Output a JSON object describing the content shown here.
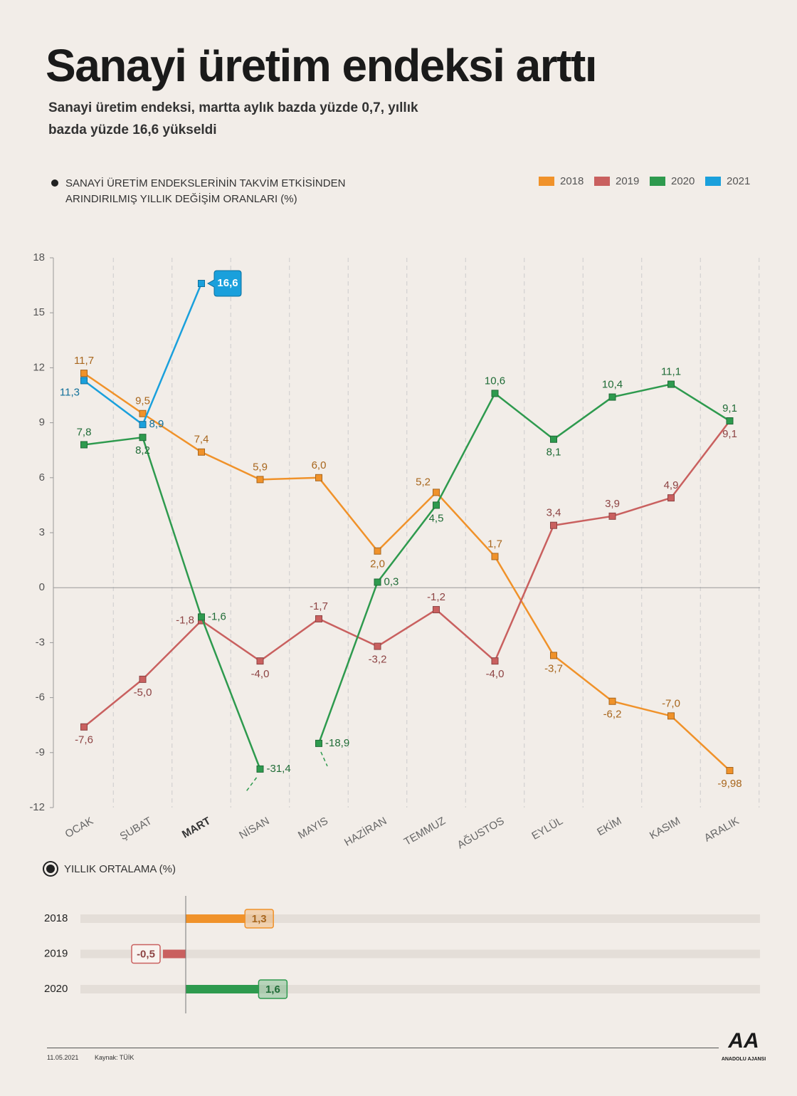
{
  "header": {
    "title": "Sanayi üretim endeksi arttı",
    "subtitle": "Sanayi üretim endeksi, martta aylık bazda yüzde 0,7, yıllık bazda yüzde 16,6 yükseldi"
  },
  "chart_data": [
    {
      "type": "line",
      "title": "SANAYİ ÜRETİM ENDEKSLERİNİN TAKVİM ETKİSİNDEN ARINDIRILMIŞ YILLIK DEĞİŞİM ORANLARI (%)",
      "categories": [
        "OCAK",
        "ŞUBAT",
        "MART",
        "NİSAN",
        "MAYIS",
        "HAZİRAN",
        "TEMMUZ",
        "AĞUSTOS",
        "EYLÜL",
        "EKİM",
        "KASIM",
        "ARALIK"
      ],
      "highlight_category": 2,
      "ylim": [
        -12,
        18
      ],
      "yticks": [
        18,
        15,
        12,
        9,
        6,
        3,
        0,
        -3,
        -6,
        -9,
        -12
      ],
      "legend": "top-right",
      "series": [
        {
          "name": "2018",
          "color": "#f0922a",
          "values": [
            11.7,
            9.5,
            7.4,
            5.9,
            6.0,
            2.0,
            5.2,
            1.7,
            -3.7,
            -6.2,
            -7.0,
            -9.98
          ],
          "value_labels": [
            "11,7",
            "9,5",
            "7,4",
            "5,9",
            "6,0",
            "2,0",
            "5,2",
            "1,7",
            "-3,7",
            "-6,2",
            "-7,0",
            "-9,98"
          ]
        },
        {
          "name": "2019",
          "color": "#c9605f",
          "values": [
            -7.6,
            -5.0,
            -1.8,
            -4.0,
            -1.7,
            -3.2,
            -1.2,
            -4.0,
            3.4,
            3.9,
            4.9,
            9.1
          ],
          "value_labels": [
            "-7,6",
            "-5,0",
            "-1,8",
            "-4,0",
            "-1,7",
            "-3,2",
            "-1,2",
            "-4,0",
            "3,4",
            "3,9",
            "4,9",
            "9,1"
          ]
        },
        {
          "name": "2020",
          "color": "#2e9a4e",
          "values": [
            7.8,
            8.2,
            -1.6,
            -31.4,
            -18.9,
            0.3,
            4.5,
            10.6,
            8.1,
            10.4,
            11.1,
            9.1
          ],
          "value_labels": [
            "7,8",
            "8,2",
            "-1,6",
            "-31,4",
            "-18,9",
            "0,3",
            "4,5",
            "10,6",
            "8,1",
            "10,4",
            "11,1",
            "9,1"
          ]
        },
        {
          "name": "2021",
          "color": "#1aa0dc",
          "values": [
            11.3,
            8.9,
            16.6,
            null,
            null,
            null,
            null,
            null,
            null,
            null,
            null,
            null
          ],
          "value_labels": [
            "11,3",
            "8,9",
            "16,6",
            null,
            null,
            null,
            null,
            null,
            null,
            null,
            null,
            null
          ]
        }
      ]
    },
    {
      "type": "hbar",
      "title": "YILLIK ORTALAMA (%)",
      "categories": [
        "2018",
        "2019",
        "2020"
      ],
      "values": [
        1.3,
        -0.5,
        1.6
      ],
      "value_labels": [
        "1,3",
        "-0,5",
        "1,6"
      ],
      "colors": [
        "#f0922a",
        "#c9605f",
        "#2e9a4e"
      ]
    }
  ],
  "footer": {
    "date": "11.05.2021",
    "source": "Kaynak: TÜİK",
    "logo": "AA",
    "logo_caption": "ANADOLU AJANSI"
  }
}
